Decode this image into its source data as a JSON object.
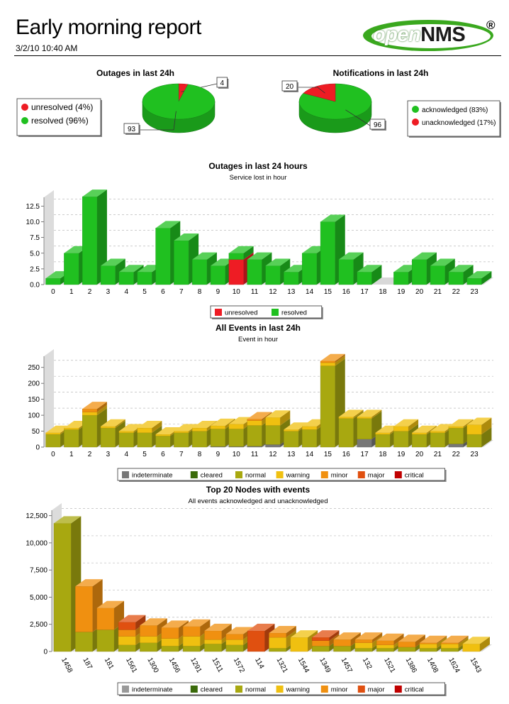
{
  "header": {
    "title": "Early morning report",
    "date": "3/2/10 10:40 AM",
    "logo_open": "open",
    "logo_nms": "NMS",
    "logo_reg": "®"
  },
  "chart_data": [
    {
      "id": "outages-pie",
      "type": "pie",
      "title": "Outages in last 24h",
      "slices": [
        {
          "name": "unresolved",
          "value": 4,
          "legend": "unresolved (4%)",
          "color": "#ee1c24"
        },
        {
          "name": "resolved",
          "value": 93,
          "legend": "resolved (96%)",
          "color": "#20c020"
        }
      ]
    },
    {
      "id": "notifications-pie",
      "type": "pie",
      "title": "Notifications in last 24h",
      "slices": [
        {
          "name": "acknowledged",
          "value": 96,
          "legend": "acknowledged (83%)",
          "color": "#20c020"
        },
        {
          "name": "unacknowledged",
          "value": 20,
          "legend": "unacknowledged (17%)",
          "color": "#ee1c24"
        }
      ]
    },
    {
      "id": "outages-hour",
      "type": "bar",
      "title": "Outages in last 24 hours",
      "subtitle": "Service lost in hour",
      "ylim": [
        0,
        13.9
      ],
      "yticks": [
        "0.0",
        "2.5",
        "5.0",
        "7.5",
        "10.0",
        "12.5"
      ],
      "ytick_values": [
        0,
        2.5,
        5,
        7.5,
        10,
        12.5
      ],
      "grid": true,
      "categories": [
        "0",
        "1",
        "2",
        "3",
        "4",
        "5",
        "6",
        "7",
        "8",
        "9",
        "10",
        "11",
        "12",
        "13",
        "14",
        "15",
        "16",
        "17",
        "18",
        "19",
        "20",
        "21",
        "22",
        "23"
      ],
      "series": [
        {
          "name": "unresolved",
          "color": "#ee1c24",
          "values": [
            0,
            0,
            0,
            0,
            0,
            0,
            0,
            0,
            0,
            0,
            4,
            0,
            0,
            0,
            0,
            0,
            0,
            0,
            0,
            0,
            0,
            0,
            0,
            0
          ]
        },
        {
          "name": "resolved",
          "color": "#20c020",
          "values": [
            1,
            5,
            14,
            3,
            2,
            2,
            9,
            7,
            4,
            3,
            1,
            4,
            3,
            2,
            5,
            10,
            4,
            2,
            0,
            2,
            4,
            3,
            2,
            1
          ]
        }
      ],
      "legend_position": "bottom"
    },
    {
      "id": "events-hour",
      "type": "bar",
      "title": "All Events in last 24h",
      "subtitle": "Event in hour",
      "ylim": [
        0,
        285
      ],
      "yticks": [
        "0",
        "50",
        "100",
        "150",
        "200",
        "250"
      ],
      "ytick_values": [
        0,
        50,
        100,
        150,
        200,
        250
      ],
      "grid": true,
      "categories": [
        "0",
        "1",
        "2",
        "3",
        "4",
        "5",
        "6",
        "7",
        "8",
        "9",
        "10",
        "11",
        "12",
        "13",
        "14",
        "15",
        "16",
        "17",
        "18",
        "19",
        "20",
        "21",
        "22",
        "23"
      ],
      "series": [
        {
          "name": "indeterminate",
          "color": "#777777",
          "values": [
            0,
            0,
            0,
            0,
            0,
            0,
            0,
            0,
            0,
            2,
            2,
            3,
            8,
            0,
            0,
            0,
            0,
            25,
            0,
            0,
            0,
            0,
            10,
            0
          ]
        },
        {
          "name": "cleared",
          "color": "#3a6a0a",
          "values": [
            0,
            0,
            0,
            0,
            0,
            0,
            0,
            0,
            0,
            0,
            0,
            0,
            0,
            0,
            0,
            0,
            0,
            0,
            0,
            0,
            0,
            0,
            0,
            0
          ]
        },
        {
          "name": "normal",
          "color": "#a8a810",
          "values": [
            40,
            55,
            100,
            60,
            45,
            45,
            35,
            45,
            50,
            55,
            55,
            65,
            60,
            50,
            55,
            255,
            90,
            65,
            40,
            50,
            40,
            45,
            50,
            40
          ]
        },
        {
          "name": "warning",
          "color": "#f0c010",
          "values": [
            5,
            5,
            10,
            5,
            5,
            15,
            5,
            5,
            10,
            10,
            15,
            15,
            25,
            5,
            10,
            10,
            5,
            5,
            5,
            15,
            5,
            5,
            5,
            30
          ]
        },
        {
          "name": "minor",
          "color": "#f09010",
          "values": [
            0,
            0,
            10,
            0,
            0,
            0,
            0,
            0,
            0,
            0,
            0,
            5,
            0,
            0,
            0,
            5,
            0,
            0,
            0,
            0,
            0,
            0,
            0,
            0
          ]
        },
        {
          "name": "major",
          "color": "#e05010",
          "values": [
            0,
            0,
            0,
            0,
            0,
            0,
            0,
            0,
            0,
            0,
            0,
            0,
            0,
            0,
            0,
            0,
            0,
            0,
            0,
            0,
            0,
            0,
            0,
            0
          ]
        },
        {
          "name": "critical",
          "color": "#c00000",
          "values": [
            0,
            0,
            0,
            0,
            0,
            0,
            0,
            0,
            0,
            0,
            0,
            0,
            0,
            0,
            0,
            0,
            0,
            0,
            0,
            0,
            0,
            0,
            0,
            0
          ]
        }
      ],
      "legend_position": "bottom"
    },
    {
      "id": "top-nodes",
      "type": "bar",
      "title": "Top 20 Nodes with events",
      "subtitle": "All events acknowledged and unacknowledged",
      "ylim": [
        0,
        13000
      ],
      "yticks": [
        "0",
        "2,500",
        "5,000",
        "7,500",
        "10,000",
        "12,500"
      ],
      "ytick_values": [
        0,
        2500,
        5000,
        7500,
        10000,
        12500
      ],
      "grid": true,
      "categories": [
        "1458",
        "187",
        "181",
        "1561",
        "1300",
        "1456",
        "1291",
        "1511",
        "1572",
        "114",
        "1321",
        "1544",
        "1349",
        "1457",
        "132",
        "1521",
        "1386",
        "1408",
        "1624",
        "1543"
      ],
      "series": [
        {
          "name": "indeterminate",
          "color": "#999999",
          "values": [
            0,
            0,
            0,
            0,
            0,
            0,
            0,
            0,
            0,
            0,
            0,
            0,
            0,
            0,
            0,
            0,
            0,
            0,
            0,
            0
          ]
        },
        {
          "name": "cleared",
          "color": "#3a6a0a",
          "values": [
            0,
            0,
            0,
            0,
            0,
            0,
            0,
            0,
            0,
            0,
            0,
            0,
            0,
            0,
            0,
            0,
            0,
            0,
            0,
            0
          ]
        },
        {
          "name": "normal",
          "color": "#a8a810",
          "values": [
            11800,
            1800,
            2000,
            600,
            800,
            500,
            500,
            700,
            600,
            0,
            300,
            0,
            500,
            500,
            300,
            300,
            400,
            300,
            300,
            0
          ]
        },
        {
          "name": "warning",
          "color": "#f0c010",
          "values": [
            0,
            0,
            0,
            800,
            600,
            700,
            900,
            400,
            500,
            0,
            1000,
            1300,
            0,
            0,
            500,
            300,
            0,
            400,
            400,
            700
          ]
        },
        {
          "name": "minor",
          "color": "#f09010",
          "values": [
            0,
            4200,
            2000,
            600,
            1000,
            1000,
            900,
            800,
            500,
            0,
            400,
            0,
            500,
            600,
            300,
            400,
            500,
            100,
            100,
            0
          ]
        },
        {
          "name": "major",
          "color": "#e05010",
          "values": [
            0,
            0,
            0,
            700,
            0,
            0,
            0,
            0,
            0,
            1900,
            0,
            0,
            300,
            0,
            0,
            0,
            0,
            0,
            0,
            0
          ]
        },
        {
          "name": "critical",
          "color": "#c00000",
          "values": [
            0,
            0,
            0,
            0,
            0,
            0,
            0,
            0,
            0,
            0,
            0,
            0,
            0,
            0,
            0,
            0,
            0,
            0,
            0,
            0
          ]
        }
      ],
      "legend_position": "bottom"
    }
  ]
}
